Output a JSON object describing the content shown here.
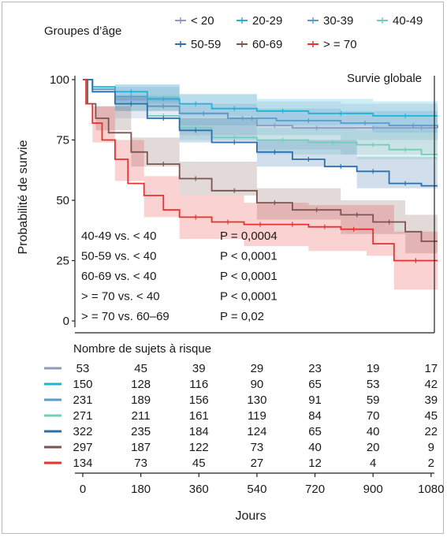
{
  "chart_data": {
    "type": "line",
    "subtype": "kaplan-meier-survival",
    "title": "Survie globale",
    "xlabel": "Jours",
    "ylabel": "Probabilité de survie",
    "xlim": [
      0,
      1100
    ],
    "ylim": [
      0,
      100
    ],
    "x_ticks": [
      "0",
      "180",
      "360",
      "540",
      "720",
      "900",
      "1080"
    ],
    "y_ticks": [
      "0",
      "25",
      "50",
      "75",
      "100"
    ],
    "grid": false,
    "confidence_bands": true,
    "legend": {
      "title": "Groupes d’âge",
      "position": "top",
      "labels": [
        "< 20",
        "20-29",
        "30-39",
        "40-49",
        "50-59",
        "60-69",
        "> = 70"
      ]
    },
    "series": [
      {
        "name": "< 20",
        "color": "#8e9ac4",
        "points": [
          [
            0,
            100
          ],
          [
            30,
            96
          ],
          [
            100,
            92
          ],
          [
            200,
            89
          ],
          [
            300,
            86
          ],
          [
            450,
            84
          ],
          [
            540,
            81
          ],
          [
            650,
            80
          ],
          [
            800,
            80
          ],
          [
            1000,
            80
          ],
          [
            1100,
            80
          ]
        ],
        "ci_lower": [
          [
            0,
            100
          ],
          [
            100,
            84
          ],
          [
            300,
            77
          ],
          [
            540,
            71
          ],
          [
            800,
            69
          ],
          [
            1100,
            68
          ]
        ],
        "ci_upper": [
          [
            0,
            100
          ],
          [
            100,
            98
          ],
          [
            300,
            94
          ],
          [
            540,
            91
          ],
          [
            800,
            90
          ],
          [
            1100,
            90
          ]
        ]
      },
      {
        "name": "20-29",
        "color": "#1fb3d6",
        "points": [
          [
            0,
            100
          ],
          [
            30,
            97
          ],
          [
            100,
            95
          ],
          [
            200,
            92
          ],
          [
            300,
            90
          ],
          [
            400,
            88
          ],
          [
            540,
            87
          ],
          [
            700,
            86
          ],
          [
            900,
            85
          ],
          [
            1100,
            85
          ]
        ],
        "ci_lower": [
          [
            0,
            100
          ],
          [
            100,
            91
          ],
          [
            300,
            85
          ],
          [
            540,
            81
          ],
          [
            900,
            78
          ],
          [
            1100,
            77
          ]
        ],
        "ci_upper": [
          [
            0,
            100
          ],
          [
            100,
            98
          ],
          [
            300,
            94
          ],
          [
            540,
            92
          ],
          [
            900,
            91
          ],
          [
            1100,
            91
          ]
        ]
      },
      {
        "name": "30-39",
        "color": "#5b9bc9",
        "points": [
          [
            0,
            100
          ],
          [
            30,
            96
          ],
          [
            100,
            93
          ],
          [
            200,
            89
          ],
          [
            300,
            86
          ],
          [
            450,
            84
          ],
          [
            600,
            83
          ],
          [
            800,
            82
          ],
          [
            950,
            81
          ],
          [
            1100,
            80
          ]
        ],
        "ci_lower": [
          [
            0,
            100
          ],
          [
            100,
            90
          ],
          [
            300,
            81
          ],
          [
            540,
            77
          ],
          [
            800,
            75
          ],
          [
            1100,
            73
          ]
        ],
        "ci_upper": [
          [
            0,
            100
          ],
          [
            100,
            97
          ],
          [
            300,
            90
          ],
          [
            540,
            88
          ],
          [
            800,
            87
          ],
          [
            1100,
            86
          ]
        ]
      },
      {
        "name": "40-49",
        "color": "#6fcfbd",
        "points": [
          [
            0,
            100
          ],
          [
            30,
            95
          ],
          [
            100,
            90
          ],
          [
            200,
            85
          ],
          [
            300,
            80
          ],
          [
            400,
            76
          ],
          [
            540,
            75
          ],
          [
            700,
            74
          ],
          [
            850,
            73
          ],
          [
            950,
            71
          ],
          [
            1050,
            69
          ],
          [
            1100,
            69
          ]
        ],
        "ci_lower": [
          [
            0,
            100
          ],
          [
            100,
            87
          ],
          [
            300,
            75
          ],
          [
            540,
            69
          ],
          [
            850,
            67
          ],
          [
            1100,
            62
          ]
        ],
        "ci_upper": [
          [
            0,
            100
          ],
          [
            100,
            94
          ],
          [
            300,
            85
          ],
          [
            540,
            80
          ],
          [
            850,
            79
          ],
          [
            1100,
            76
          ]
        ]
      },
      {
        "name": "50-59",
        "color": "#2c6fae",
        "points": [
          [
            0,
            100
          ],
          [
            30,
            95
          ],
          [
            100,
            90
          ],
          [
            200,
            84
          ],
          [
            300,
            79
          ],
          [
            400,
            74
          ],
          [
            540,
            70
          ],
          [
            650,
            67
          ],
          [
            750,
            64
          ],
          [
            850,
            62
          ],
          [
            950,
            57
          ],
          [
            1050,
            56
          ],
          [
            1100,
            56
          ]
        ],
        "ci_lower": [
          [
            0,
            100
          ],
          [
            100,
            87
          ],
          [
            300,
            74
          ],
          [
            540,
            64
          ],
          [
            850,
            55
          ],
          [
            1100,
            47
          ]
        ],
        "ci_upper": [
          [
            0,
            100
          ],
          [
            100,
            93
          ],
          [
            300,
            84
          ],
          [
            540,
            75
          ],
          [
            850,
            68
          ],
          [
            1100,
            64
          ]
        ]
      },
      {
        "name": "60-69",
        "color": "#7b5450",
        "points": [
          [
            0,
            100
          ],
          [
            15,
            90
          ],
          [
            40,
            84
          ],
          [
            80,
            78
          ],
          [
            150,
            70
          ],
          [
            200,
            65
          ],
          [
            300,
            59
          ],
          [
            400,
            54
          ],
          [
            540,
            49
          ],
          [
            650,
            46
          ],
          [
            800,
            44
          ],
          [
            900,
            41
          ],
          [
            1000,
            37
          ],
          [
            1050,
            33
          ],
          [
            1100,
            33
          ]
        ],
        "ci_lower": [
          [
            0,
            100
          ],
          [
            40,
            79
          ],
          [
            150,
            64
          ],
          [
            300,
            52
          ],
          [
            540,
            42
          ],
          [
            800,
            36
          ],
          [
            1000,
            28
          ],
          [
            1100,
            23
          ]
        ],
        "ci_upper": [
          [
            0,
            100
          ],
          [
            40,
            89
          ],
          [
            150,
            76
          ],
          [
            300,
            66
          ],
          [
            540,
            55
          ],
          [
            800,
            50
          ],
          [
            1000,
            44
          ],
          [
            1100,
            42
          ]
        ]
      },
      {
        "name": "> = 70",
        "color": "#e8302c",
        "points": [
          [
            0,
            100
          ],
          [
            10,
            90
          ],
          [
            30,
            82
          ],
          [
            60,
            75
          ],
          [
            100,
            67
          ],
          [
            140,
            57
          ],
          [
            190,
            52
          ],
          [
            250,
            46
          ],
          [
            300,
            43
          ],
          [
            400,
            41
          ],
          [
            500,
            40
          ],
          [
            600,
            40
          ],
          [
            700,
            39
          ],
          [
            800,
            38
          ],
          [
            880,
            38
          ],
          [
            900,
            32
          ],
          [
            960,
            32
          ],
          [
            965,
            25
          ],
          [
            1100,
            25
          ]
        ],
        "ci_lower": [
          [
            0,
            100
          ],
          [
            30,
            74
          ],
          [
            100,
            58
          ],
          [
            190,
            43
          ],
          [
            300,
            34
          ],
          [
            500,
            31
          ],
          [
            700,
            29
          ],
          [
            880,
            27
          ],
          [
            965,
            13
          ],
          [
            1100,
            13
          ]
        ],
        "ci_upper": [
          [
            0,
            100
          ],
          [
            30,
            89
          ],
          [
            100,
            75
          ],
          [
            190,
            60
          ],
          [
            300,
            52
          ],
          [
            500,
            49
          ],
          [
            700,
            48
          ],
          [
            880,
            48
          ],
          [
            965,
            37
          ],
          [
            1100,
            37
          ]
        ]
      }
    ],
    "annotations": [
      {
        "comparison": "40-49 vs. < 40",
        "p": "P = 0,0004"
      },
      {
        "comparison": "50-59 vs. < 40",
        "p": "P < 0,0001"
      },
      {
        "comparison": "60-69 vs. < 40",
        "p": "P < 0,0001"
      },
      {
        "comparison": "> = 70 vs. < 40",
        "p": "P < 0,0001"
      },
      {
        "comparison": "> = 70 vs. 60–69",
        "p": "P = 0,02"
      }
    ],
    "risk_table": {
      "title": "Nombre de sujets à risque",
      "rows": [
        [
          "53",
          "45",
          "39",
          "29",
          "23",
          "19",
          "17"
        ],
        [
          "150",
          "128",
          "116",
          "90",
          "65",
          "53",
          "42"
        ],
        [
          "231",
          "189",
          "156",
          "130",
          "91",
          "59",
          "39"
        ],
        [
          "271",
          "211",
          "161",
          "119",
          "84",
          "70",
          "45"
        ],
        [
          "322",
          "235",
          "184",
          "124",
          "65",
          "40",
          "22"
        ],
        [
          "297",
          "187",
          "122",
          "73",
          "40",
          "20",
          "9"
        ],
        [
          "134",
          "73",
          "45",
          "27",
          "12",
          "4",
          "2"
        ]
      ]
    }
  }
}
